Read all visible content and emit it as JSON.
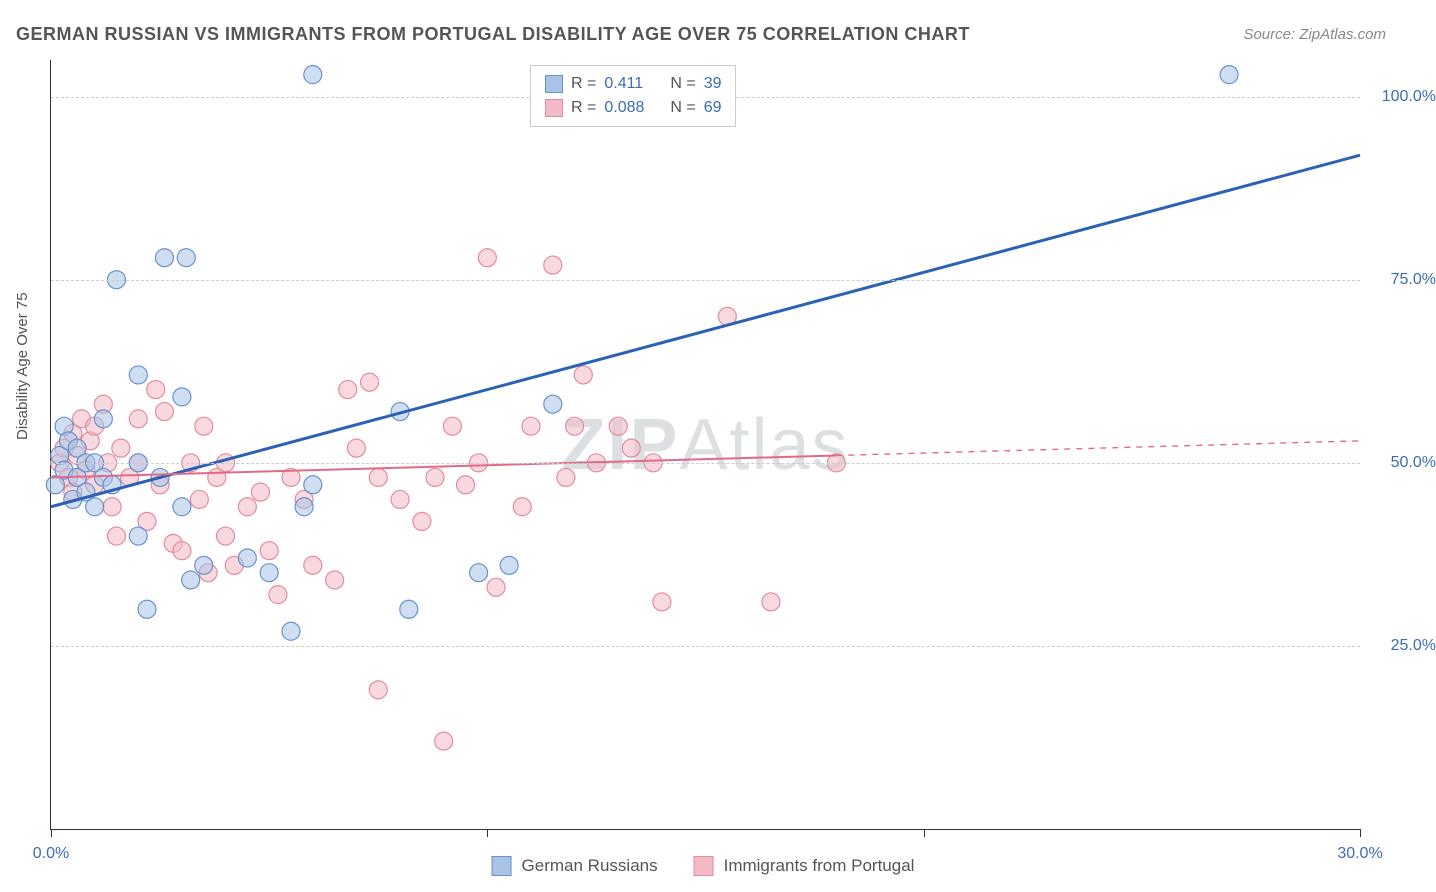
{
  "title": "GERMAN RUSSIAN VS IMMIGRANTS FROM PORTUGAL DISABILITY AGE OVER 75 CORRELATION CHART",
  "source": "Source: ZipAtlas.com",
  "y_axis_label": "Disability Age Over 75",
  "watermark": {
    "bold": "ZIP",
    "rest": "Atlas"
  },
  "chart": {
    "type": "scatter",
    "background_color": "#ffffff",
    "grid_color": "#cccccc",
    "axis_color": "#333333",
    "tick_label_color": "#3b6db0",
    "axis_label_color": "#555555",
    "xlim": [
      0,
      30
    ],
    "ylim": [
      0,
      105
    ],
    "x_ticks": [
      0,
      10,
      20,
      30
    ],
    "x_tick_labels": [
      "0.0%",
      "",
      "",
      "30.0%"
    ],
    "y_ticks": [
      25,
      50,
      75,
      100
    ],
    "y_tick_labels": [
      "25.0%",
      "50.0%",
      "75.0%",
      "100.0%"
    ],
    "marker_radius": 9,
    "marker_opacity": 0.55,
    "series": [
      {
        "name": "German Russians",
        "fill_color": "#a9c3e6",
        "stroke_color": "#6a93cc",
        "r_value": "0.411",
        "n_value": "39",
        "trend": {
          "x1": 0,
          "y1": 44,
          "x2": 30,
          "y2": 92,
          "solid_until_x": 30,
          "color": "#2b62b5",
          "width": 3
        },
        "points": [
          [
            0.1,
            47
          ],
          [
            0.2,
            51
          ],
          [
            0.3,
            55
          ],
          [
            0.3,
            49
          ],
          [
            0.4,
            53
          ],
          [
            0.5,
            45
          ],
          [
            0.6,
            48
          ],
          [
            0.6,
            52
          ],
          [
            0.8,
            50
          ],
          [
            0.8,
            46
          ],
          [
            1.0,
            50
          ],
          [
            1.0,
            44
          ],
          [
            1.2,
            48
          ],
          [
            1.2,
            56
          ],
          [
            1.4,
            47
          ],
          [
            1.5,
            75
          ],
          [
            2.0,
            62
          ],
          [
            2.0,
            50
          ],
          [
            2.0,
            40
          ],
          [
            2.2,
            30
          ],
          [
            2.5,
            48
          ],
          [
            2.6,
            78
          ],
          [
            3.0,
            59
          ],
          [
            3.0,
            44
          ],
          [
            3.1,
            78
          ],
          [
            3.2,
            34
          ],
          [
            3.5,
            36
          ],
          [
            4.5,
            37
          ],
          [
            5.0,
            35
          ],
          [
            5.5,
            27
          ],
          [
            5.8,
            44
          ],
          [
            6.0,
            103
          ],
          [
            6.0,
            47
          ],
          [
            8.0,
            57
          ],
          [
            8.2,
            30
          ],
          [
            9.8,
            35
          ],
          [
            10.5,
            36
          ],
          [
            11.5,
            58
          ],
          [
            27.0,
            103
          ]
        ]
      },
      {
        "name": "Immigrants from Portugal",
        "fill_color": "#f2b9c6",
        "stroke_color": "#e48ba0",
        "r_value": "0.088",
        "n_value": "69",
        "trend": {
          "x1": 0,
          "y1": 48,
          "x2": 30,
          "y2": 53,
          "solid_until_x": 18,
          "color": "#e26a88",
          "width": 2
        },
        "points": [
          [
            0.2,
            50
          ],
          [
            0.3,
            52
          ],
          [
            0.4,
            48
          ],
          [
            0.5,
            54
          ],
          [
            0.5,
            46
          ],
          [
            0.6,
            51
          ],
          [
            0.7,
            56
          ],
          [
            0.8,
            49
          ],
          [
            0.9,
            53
          ],
          [
            1.0,
            47
          ],
          [
            1.0,
            55
          ],
          [
            1.2,
            58
          ],
          [
            1.3,
            50
          ],
          [
            1.4,
            44
          ],
          [
            1.5,
            40
          ],
          [
            1.6,
            52
          ],
          [
            1.8,
            48
          ],
          [
            2.0,
            56
          ],
          [
            2.0,
            50
          ],
          [
            2.2,
            42
          ],
          [
            2.4,
            60
          ],
          [
            2.5,
            47
          ],
          [
            2.6,
            57
          ],
          [
            2.8,
            39
          ],
          [
            3.0,
            38
          ],
          [
            3.2,
            50
          ],
          [
            3.4,
            45
          ],
          [
            3.5,
            55
          ],
          [
            3.6,
            35
          ],
          [
            3.8,
            48
          ],
          [
            4.0,
            50
          ],
          [
            4.0,
            40
          ],
          [
            4.2,
            36
          ],
          [
            4.5,
            44
          ],
          [
            4.8,
            46
          ],
          [
            5.0,
            38
          ],
          [
            5.2,
            32
          ],
          [
            5.5,
            48
          ],
          [
            5.8,
            45
          ],
          [
            6.0,
            36
          ],
          [
            6.5,
            34
          ],
          [
            6.8,
            60
          ],
          [
            7.0,
            52
          ],
          [
            7.3,
            61
          ],
          [
            7.5,
            48
          ],
          [
            7.5,
            19
          ],
          [
            8.0,
            45
          ],
          [
            8.5,
            42
          ],
          [
            8.8,
            48
          ],
          [
            9.0,
            12
          ],
          [
            9.2,
            55
          ],
          [
            9.5,
            47
          ],
          [
            9.8,
            50
          ],
          [
            10.0,
            78
          ],
          [
            10.2,
            33
          ],
          [
            10.8,
            44
          ],
          [
            11.0,
            55
          ],
          [
            11.5,
            77
          ],
          [
            11.8,
            48
          ],
          [
            12.0,
            55
          ],
          [
            12.2,
            62
          ],
          [
            12.5,
            50
          ],
          [
            13.0,
            55
          ],
          [
            13.3,
            52
          ],
          [
            13.8,
            50
          ],
          [
            14.0,
            31
          ],
          [
            15.5,
            70
          ],
          [
            16.5,
            31
          ],
          [
            18.0,
            50
          ]
        ]
      }
    ]
  },
  "legend_top": {
    "r_label": "R =",
    "n_label": "N ="
  },
  "legend_bottom": {
    "items": [
      "German Russians",
      "Immigrants from Portugal"
    ]
  }
}
